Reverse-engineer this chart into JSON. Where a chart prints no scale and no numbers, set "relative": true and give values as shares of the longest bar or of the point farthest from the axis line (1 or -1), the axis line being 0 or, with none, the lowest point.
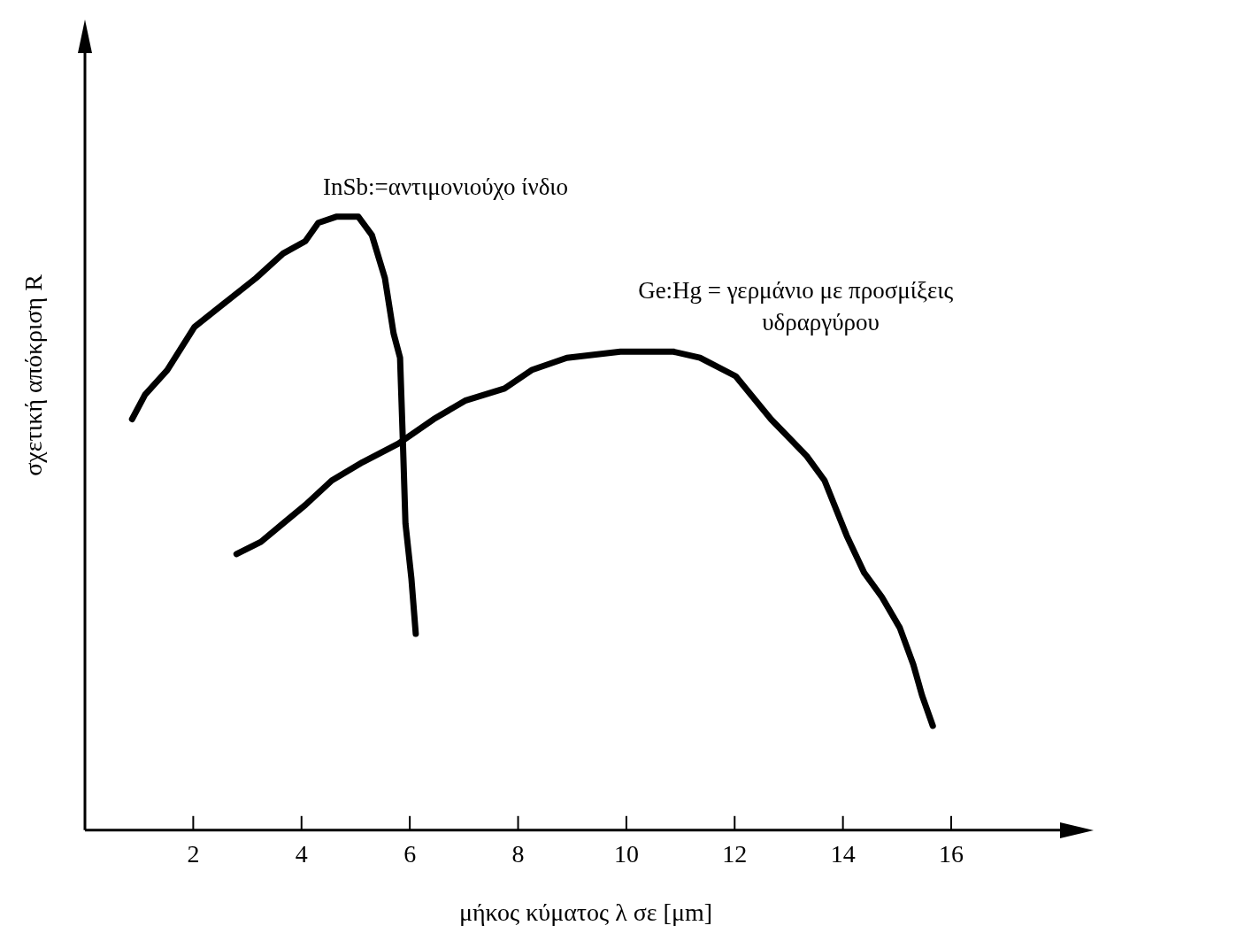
{
  "chart_data": {
    "type": "line",
    "relative": true,
    "xlabel": "μήκος κύματος λ σε [μm]",
    "ylabel": "σχετική απόκριση R",
    "xlim": [
      0,
      18.5
    ],
    "xticks": [
      2,
      4,
      6,
      8,
      10,
      12,
      14,
      16
    ],
    "grid": false,
    "legend": false,
    "marker": "none",
    "line_style": "solid",
    "series": [
      {
        "name": "InSb:=αντιμονιούχο ίνδιο",
        "color": "#000000",
        "x": [
          0.87,
          1.11,
          1.52,
          2.02,
          2.59,
          3.16,
          3.66,
          4.07,
          4.31,
          4.64,
          5.05,
          5.3,
          5.54,
          5.7,
          5.82,
          5.87,
          5.92,
          6.03,
          6.11
        ],
        "values": [
          0.67,
          0.71,
          0.75,
          0.82,
          0.86,
          0.9,
          0.94,
          0.96,
          0.99,
          1,
          1,
          0.97,
          0.9,
          0.81,
          0.77,
          0.64,
          0.5,
          0.41,
          0.32
        ]
      },
      {
        "name": "Ge:Hg = γερμάνιο με προσμίξεις υδραργύρου",
        "color": "#000000",
        "x": [
          2.8,
          3.25,
          3.66,
          4.07,
          4.56,
          5.13,
          5.79,
          6.44,
          7.02,
          7.75,
          8.25,
          8.9,
          9.89,
          10.87,
          11.36,
          12.02,
          12.67,
          13.33,
          13.66,
          14.07,
          14.39,
          14.72,
          15.05,
          15.3,
          15.46,
          15.66
        ],
        "values": [
          0.45,
          0.47,
          0.5,
          0.53,
          0.57,
          0.6,
          0.63,
          0.67,
          0.7,
          0.72,
          0.75,
          0.77,
          0.78,
          0.78,
          0.77,
          0.74,
          0.67,
          0.61,
          0.57,
          0.48,
          0.42,
          0.38,
          0.33,
          0.27,
          0.22,
          0.17
        ]
      }
    ]
  }
}
